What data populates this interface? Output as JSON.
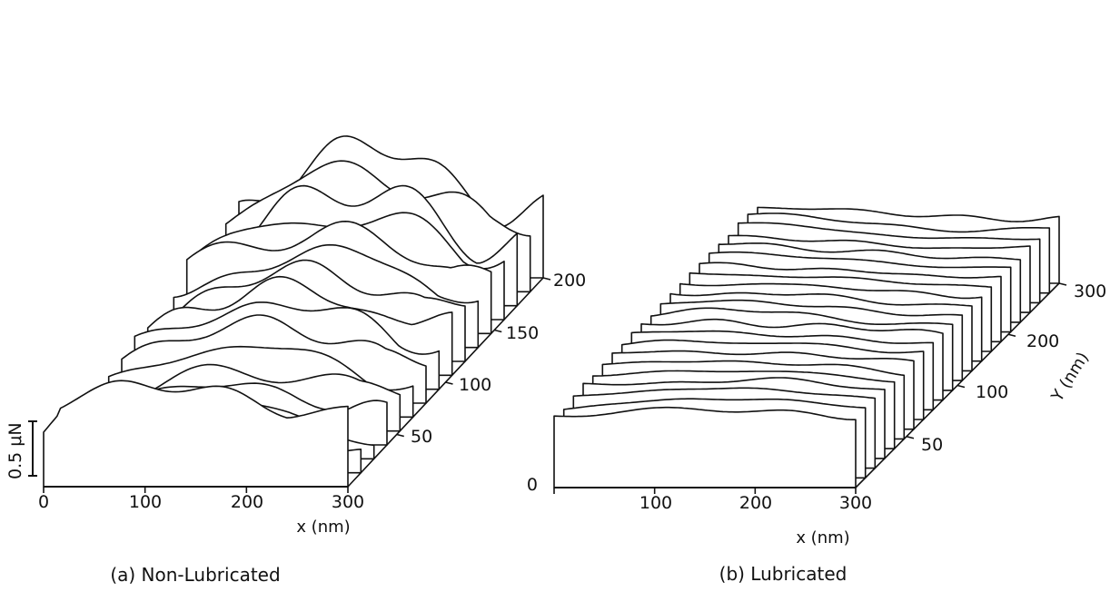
{
  "chart_data": [
    {
      "type": "line",
      "caption": "(a) Non-Lubricated",
      "xlabel": "x (nm)",
      "ylabel": "",
      "zlabel": "",
      "x_ticks": [
        "0",
        "100",
        "200",
        "300"
      ],
      "y_ticks": [
        "50",
        "100",
        "150",
        "200"
      ],
      "scale_bar_label": "0.5 μN",
      "xlim": [
        0,
        300
      ],
      "ylim": [
        0,
        200
      ],
      "num_profiles": 16
    },
    {
      "type": "line",
      "caption": "(b) Lubricated",
      "xlabel": "x (nm)",
      "ylabel": "Y (nm)",
      "zlabel": "",
      "x_ticks": [
        "100",
        "200",
        "300"
      ],
      "y_ticks": [
        "50",
        "100",
        "200",
        "300"
      ],
      "z_ticks": [
        "0"
      ],
      "xlim": [
        0,
        300
      ],
      "ylim": [
        0,
        300
      ],
      "num_profiles": 22
    }
  ]
}
